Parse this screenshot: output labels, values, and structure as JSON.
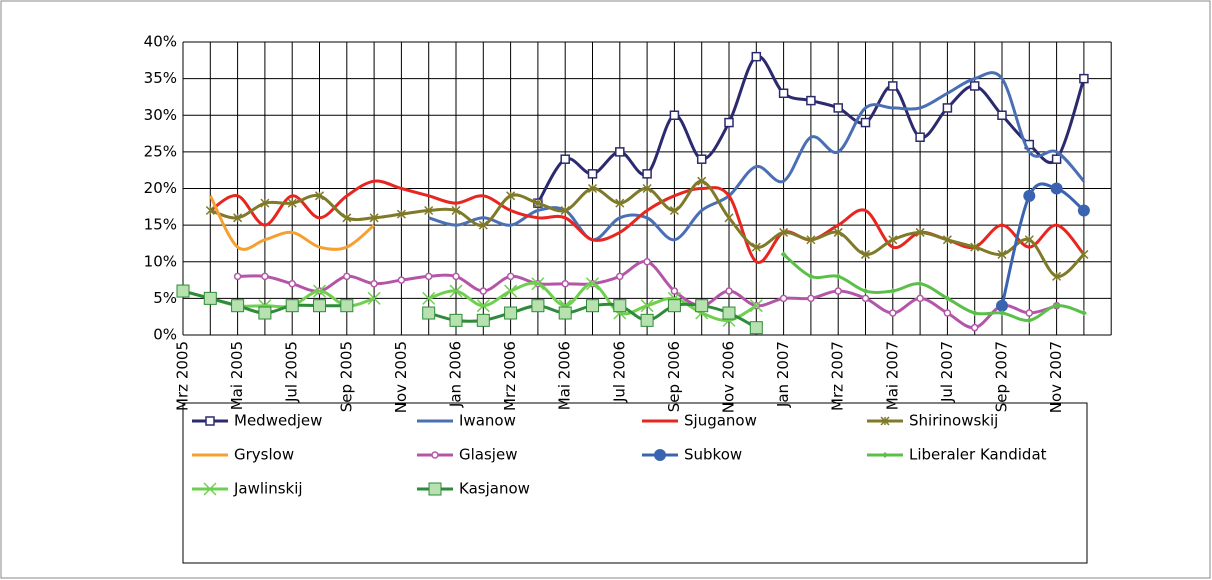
{
  "chart_data": {
    "type": "line",
    "categories": [
      "Mrz 2005",
      null,
      "Mai 2005",
      null,
      "Jul 2005",
      null,
      "Sep 2005",
      null,
      "Nov 2005",
      null,
      "Jan 2006",
      null,
      "Mrz 2006",
      null,
      "Mai 2006",
      null,
      "Jul 2006",
      null,
      "Sep 2006",
      null,
      "Nov 2006",
      null,
      "Jan 2007",
      null,
      "Mrz 2007",
      null,
      "Mai 2007",
      null,
      "Jul 2007",
      null,
      "Sep 2007",
      null,
      "Nov 2007",
      null
    ],
    "ylim": [
      0,
      40
    ],
    "yticks": [
      {
        "value": 0,
        "label": "0%"
      },
      {
        "value": 5,
        "label": "5%"
      },
      {
        "value": 10,
        "label": "10%"
      },
      {
        "value": 15,
        "label": "15%"
      },
      {
        "value": 20,
        "label": "20%"
      },
      {
        "value": 25,
        "label": "25%"
      },
      {
        "value": 30,
        "label": "30%"
      },
      {
        "value": 35,
        "label": "35%"
      },
      {
        "value": 40,
        "label": "40%"
      }
    ],
    "grid": true,
    "legend": "bottom",
    "series": [
      {
        "name": "Medwedjew",
        "color": "#2b2a6e",
        "marker": "square",
        "values": [
          null,
          null,
          null,
          null,
          null,
          null,
          null,
          null,
          null,
          null,
          null,
          null,
          null,
          18,
          24,
          22,
          25,
          22,
          30,
          24,
          29,
          38,
          33,
          32,
          31,
          29,
          34,
          27,
          31,
          34,
          30,
          26,
          24,
          35
        ]
      },
      {
        "name": "Iwanow",
        "color": "#4a6fb5",
        "marker": "none",
        "values": [
          null,
          null,
          null,
          null,
          null,
          null,
          null,
          null,
          null,
          16,
          15,
          16,
          15,
          17,
          17,
          13,
          16,
          16,
          13,
          17,
          19,
          23,
          21,
          27,
          25,
          31,
          31,
          31,
          33,
          35,
          35,
          25,
          25,
          21
        ]
      },
      {
        "name": "Sjuganow",
        "color": "#e8261f",
        "marker": "none",
        "values": [
          null,
          17,
          19,
          15,
          19,
          16,
          19,
          21,
          20,
          19,
          18,
          19,
          17,
          16,
          16,
          13,
          14,
          17,
          19,
          20,
          19,
          10,
          14,
          13,
          15,
          17,
          12,
          14,
          13,
          12,
          15,
          12,
          15,
          11
        ]
      },
      {
        "name": "Shirinowskij",
        "color": "#7f7a2a",
        "marker": "star",
        "values": [
          null,
          17,
          16,
          18,
          18,
          19,
          16,
          16,
          16.5,
          17,
          17,
          15,
          19,
          18,
          17,
          20,
          18,
          20,
          17,
          21,
          16,
          12,
          14,
          13,
          14,
          11,
          13,
          14,
          13,
          12,
          11,
          13,
          8,
          11
        ]
      },
      {
        "name": "Gryslow",
        "color": "#f5a031",
        "marker": "none",
        "values": [
          null,
          19,
          12,
          13,
          14,
          12,
          12,
          15,
          null,
          null,
          null,
          null,
          null,
          null,
          null,
          null,
          null,
          null,
          null,
          null,
          null,
          null,
          null,
          null,
          null,
          null,
          null,
          null,
          null,
          null,
          null,
          null,
          null,
          null
        ]
      },
      {
        "name": "Glasjew",
        "color": "#b456a8",
        "marker": "circle",
        "values": [
          null,
          null,
          8,
          8,
          7,
          6,
          8,
          7,
          7.5,
          8,
          8,
          6,
          8,
          7,
          7,
          7,
          8,
          10,
          6,
          4,
          6,
          4,
          5,
          5,
          6,
          5,
          3,
          5,
          3,
          1,
          4,
          3,
          4,
          null
        ]
      },
      {
        "name": "Subkow",
        "color": "#3a64b0",
        "marker": "bigcircle",
        "values": [
          null,
          null,
          null,
          null,
          null,
          null,
          null,
          null,
          null,
          null,
          null,
          null,
          null,
          null,
          null,
          null,
          null,
          null,
          null,
          null,
          null,
          null,
          null,
          null,
          null,
          null,
          null,
          null,
          null,
          null,
          4,
          19,
          20,
          17
        ]
      },
      {
        "name": "Liberaler Kandidat",
        "color": "#5bbf4a",
        "marker": "diamond",
        "values": [
          null,
          null,
          null,
          null,
          null,
          null,
          null,
          null,
          null,
          null,
          null,
          null,
          null,
          null,
          null,
          null,
          null,
          null,
          null,
          null,
          null,
          null,
          11,
          8,
          8,
          6,
          6,
          7,
          5,
          3,
          3,
          2,
          4,
          3
        ]
      },
      {
        "name": "Jawlinskij",
        "color": "#6fcf4f",
        "marker": "x",
        "values": [
          6,
          5,
          4,
          4,
          4,
          6,
          4,
          5,
          null,
          5,
          6,
          4,
          6,
          7,
          4,
          7,
          3,
          4,
          5,
          3,
          2,
          4,
          null,
          null,
          null,
          null,
          null,
          null,
          null,
          null,
          null,
          null,
          null,
          null
        ]
      },
      {
        "name": "Kasjanow",
        "color": "#2e8b3a",
        "marker": "bigsquare",
        "values": [
          6,
          5,
          4,
          3,
          4,
          4,
          4,
          null,
          null,
          3,
          2,
          2,
          3,
          4,
          3,
          4,
          4,
          2,
          4,
          4,
          3,
          1,
          null,
          null,
          null,
          null,
          null,
          null,
          null,
          null,
          null,
          null,
          null,
          null
        ]
      }
    ]
  }
}
